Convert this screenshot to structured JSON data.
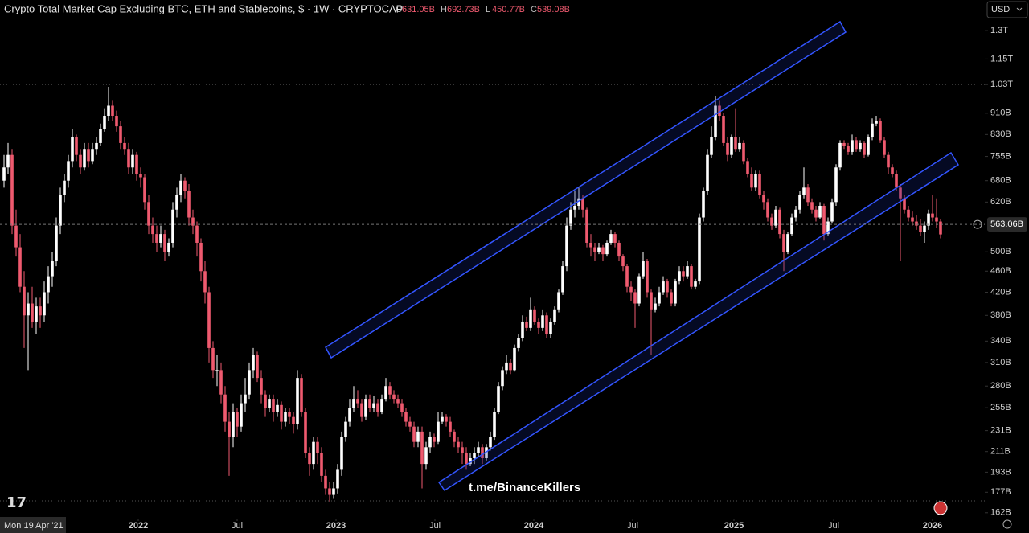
{
  "chart_data": {
    "type": "candlestick",
    "title": "Crypto Total Market Cap Excluding BTC, ETH and Stablecoins, $ · 1W · CRYPTOCAP",
    "ohlc_legend": [
      {
        "key": "O",
        "value": 631.05,
        "label": "631.05B"
      },
      {
        "key": "H",
        "value": 692.73,
        "label": "692.73B"
      },
      {
        "key": "L",
        "value": 450.77,
        "label": "450.77B"
      },
      {
        "key": "C",
        "value": 539.08,
        "label": "539.08B"
      }
    ],
    "currency": "USD",
    "cursor_label": "Mon 19 Apr '21",
    "watermark": "t.me/BinanceKillers",
    "log_scale": true,
    "up_color": "#ffffff",
    "down_color": "#ef5a6f",
    "last_price": {
      "value": 563.06,
      "label": "563.06B"
    },
    "xlim": [
      -1,
      244
    ],
    "xticks": [
      {
        "value": 33.4,
        "label": "2022"
      },
      {
        "value": 58,
        "label": "Jul"
      },
      {
        "value": 82.6,
        "label": "2023"
      },
      {
        "value": 107.2,
        "label": "Jul"
      },
      {
        "value": 131.8,
        "label": "2024"
      },
      {
        "value": 156.4,
        "label": "Jul"
      },
      {
        "value": 181.6,
        "label": "2025"
      },
      {
        "value": 206.4,
        "label": "Jul"
      },
      {
        "value": 231,
        "label": "2026"
      }
    ],
    "ylim": [
      158,
      1484
    ],
    "yticks": [
      {
        "value": 162,
        "label": "162B"
      },
      {
        "value": 177,
        "label": "177B"
      },
      {
        "value": 193,
        "label": "193B"
      },
      {
        "value": 211,
        "label": "211B"
      },
      {
        "value": 231,
        "label": "231B"
      },
      {
        "value": 255,
        "label": "255B"
      },
      {
        "value": 280,
        "label": "280B"
      },
      {
        "value": 310,
        "label": "310B"
      },
      {
        "value": 340,
        "label": "340B"
      },
      {
        "value": 380,
        "label": "380B"
      },
      {
        "value": 420,
        "label": "420B"
      },
      {
        "value": 460,
        "label": "460B"
      },
      {
        "value": 500,
        "label": "500B"
      },
      {
        "value": 620,
        "label": "620B"
      },
      {
        "value": 680,
        "label": "680B"
      },
      {
        "value": 755,
        "label": "755B"
      },
      {
        "value": 830,
        "label": "830B"
      },
      {
        "value": 910,
        "label": "910B"
      },
      {
        "value": 1030,
        "label": "1.03T"
      },
      {
        "value": 1150,
        "label": "1.15T"
      },
      {
        "value": 1300,
        "label": "1.3T"
      }
    ],
    "candles": {
      "open": [
        680,
        720,
        760,
        560,
        510,
        430,
        380,
        400,
        370,
        395,
        380,
        420,
        450,
        480,
        560,
        640,
        680,
        740,
        820,
        760,
        720,
        780,
        740,
        780,
        800,
        850,
        900,
        940,
        900,
        860,
        800,
        780,
        720,
        760,
        700,
        690,
        620,
        560,
        540,
        520,
        540,
        500,
        520,
        600,
        640,
        680,
        650,
        580,
        560,
        520,
        460,
        420,
        330,
        300,
        300,
        270,
        240,
        225,
        250,
        235,
        260,
        270,
        300,
        320,
        290,
        270,
        255,
        265,
        250,
        258,
        240,
        250,
        245,
        238,
        290,
        250,
        210,
        200,
        220,
        210,
        190,
        180,
        175,
        180,
        195,
        225,
        240,
        255,
        265,
        260,
        245,
        265,
        255,
        260,
        250,
        265,
        280,
        270,
        265,
        260,
        250,
        240,
        235,
        220,
        230,
        200,
        215,
        225,
        220,
        240,
        245,
        240,
        230,
        220,
        215,
        210,
        200,
        205,
        210,
        215,
        205,
        215,
        225,
        250,
        280,
        300,
        310,
        300,
        330,
        345,
        370,
        360,
        390,
        370,
        360,
        380,
        350,
        370,
        390,
        420,
        470,
        560,
        600,
        610,
        630,
        600,
        520,
        510,
        500,
        510,
        495,
        520,
        540,
        520,
        490,
        470,
        430,
        420,
        400,
        450,
        480,
        420,
        390,
        400,
        420,
        440,
        420,
        400,
        440,
        460,
        450,
        470,
        430,
        440,
        580,
        650,
        760,
        820,
        940,
        900,
        800,
        760,
        820,
        780,
        800,
        740,
        700,
        660,
        700,
        640,
        620,
        580,
        560,
        600,
        540,
        500,
        540,
        580,
        600,
        640,
        660,
        620,
        600,
        580,
        610,
        540,
        570,
        620,
        720,
        800,
        790,
        770,
        810,
        780,
        800,
        760,
        820,
        870,
        880,
        810,
        760,
        720,
        700,
        660,
        630,
        600,
        580,
        570,
        560,
        545,
        560,
        590,
        580,
        570
      ],
      "high": [
        760,
        800,
        780,
        600,
        540,
        460,
        420,
        430,
        410,
        410,
        440,
        470,
        500,
        580,
        660,
        700,
        760,
        850,
        830,
        780,
        800,
        800,
        800,
        820,
        870,
        930,
        1020,
        960,
        920,
        880,
        820,
        800,
        780,
        770,
        720,
        700,
        640,
        580,
        560,
        560,
        550,
        530,
        620,
        660,
        700,
        690,
        670,
        600,
        570,
        530,
        480,
        430,
        340,
        320,
        310,
        280,
        250,
        260,
        255,
        270,
        290,
        310,
        330,
        325,
        300,
        275,
        270,
        270,
        265,
        262,
        255,
        255,
        250,
        300,
        295,
        255,
        215,
        225,
        225,
        215,
        195,
        185,
        185,
        200,
        230,
        245,
        265,
        280,
        275,
        265,
        270,
        270,
        268,
        265,
        270,
        290,
        285,
        275,
        270,
        265,
        255,
        245,
        240,
        235,
        235,
        220,
        230,
        228,
        250,
        250,
        248,
        245,
        232,
        225,
        220,
        215,
        210,
        215,
        220,
        218,
        218,
        230,
        255,
        285,
        305,
        320,
        315,
        335,
        350,
        380,
        378,
        410,
        395,
        375,
        390,
        385,
        375,
        395,
        425,
        480,
        580,
        620,
        650,
        660,
        640,
        605,
        540,
        520,
        520,
        515,
        525,
        550,
        545,
        525,
        495,
        475,
        440,
        425,
        455,
        500,
        485,
        425,
        410,
        430,
        450,
        445,
        425,
        445,
        470,
        470,
        480,
        475,
        445,
        590,
        660,
        780,
        860,
        980,
        960,
        910,
        820,
        830,
        930,
        820,
        810,
        750,
        720,
        710,
        710,
        650,
        630,
        590,
        610,
        605,
        550,
        545,
        590,
        610,
        650,
        720,
        670,
        630,
        610,
        620,
        615,
        580,
        630,
        730,
        810,
        810,
        800,
        830,
        820,
        810,
        805,
        830,
        890,
        900,
        890,
        820,
        770,
        730,
        710,
        670,
        640,
        610,
        595,
        585,
        575,
        570,
        600,
        640,
        630,
        575
      ],
      "low": [
        660,
        700,
        540,
        490,
        420,
        330,
        300,
        360,
        350,
        360,
        370,
        400,
        430,
        470,
        540,
        620,
        660,
        720,
        740,
        700,
        710,
        720,
        730,
        760,
        790,
        840,
        880,
        880,
        840,
        780,
        760,
        700,
        700,
        680,
        660,
        600,
        540,
        520,
        500,
        510,
        480,
        490,
        510,
        580,
        620,
        630,
        560,
        540,
        490,
        440,
        400,
        310,
        290,
        280,
        260,
        230,
        190,
        215,
        225,
        230,
        250,
        265,
        290,
        285,
        260,
        245,
        250,
        240,
        245,
        232,
        235,
        238,
        228,
        232,
        245,
        205,
        190,
        195,
        200,
        185,
        175,
        170,
        172,
        176,
        190,
        220,
        235,
        250,
        255,
        240,
        242,
        250,
        250,
        245,
        248,
        262,
        265,
        260,
        255,
        245,
        235,
        230,
        215,
        215,
        180,
        195,
        210,
        215,
        218,
        238,
        235,
        225,
        215,
        210,
        200,
        195,
        198,
        200,
        206,
        200,
        203,
        212,
        222,
        248,
        275,
        295,
        295,
        298,
        325,
        340,
        355,
        355,
        365,
        350,
        355,
        345,
        345,
        365,
        385,
        415,
        460,
        550,
        580,
        600,
        580,
        510,
        490,
        480,
        495,
        480,
        490,
        515,
        510,
        480,
        460,
        420,
        405,
        360,
        395,
        445,
        410,
        320,
        385,
        395,
        415,
        410,
        395,
        395,
        435,
        440,
        445,
        425,
        425,
        435,
        570,
        640,
        750,
        810,
        880,
        790,
        740,
        750,
        770,
        770,
        730,
        690,
        650,
        650,
        630,
        600,
        570,
        550,
        555,
        530,
        460,
        495,
        535,
        570,
        590,
        630,
        610,
        590,
        570,
        575,
        525,
        535,
        565,
        610,
        710,
        780,
        760,
        760,
        770,
        770,
        750,
        755,
        810,
        860,
        800,
        750,
        700,
        690,
        650,
        480,
        590,
        570,
        560,
        550,
        535,
        520,
        550,
        570,
        555,
        530
      ],
      "close": [
        720,
        760,
        560,
        510,
        430,
        380,
        400,
        370,
        395,
        380,
        420,
        450,
        480,
        560,
        640,
        680,
        740,
        820,
        760,
        720,
        780,
        740,
        780,
        800,
        850,
        900,
        940,
        900,
        860,
        800,
        780,
        720,
        760,
        700,
        690,
        620,
        560,
        540,
        520,
        540,
        500,
        520,
        600,
        640,
        680,
        650,
        580,
        560,
        520,
        460,
        420,
        330,
        300,
        300,
        270,
        240,
        225,
        250,
        235,
        260,
        270,
        300,
        320,
        290,
        270,
        255,
        265,
        250,
        258,
        240,
        250,
        245,
        238,
        290,
        250,
        210,
        200,
        220,
        210,
        190,
        180,
        175,
        180,
        195,
        225,
        240,
        255,
        265,
        260,
        245,
        265,
        255,
        260,
        250,
        265,
        280,
        270,
        265,
        260,
        250,
        240,
        235,
        220,
        230,
        200,
        215,
        225,
        220,
        240,
        245,
        240,
        230,
        220,
        215,
        210,
        200,
        205,
        210,
        215,
        205,
        215,
        225,
        250,
        280,
        300,
        310,
        300,
        330,
        345,
        370,
        360,
        390,
        370,
        360,
        380,
        350,
        370,
        390,
        420,
        470,
        560,
        600,
        610,
        630,
        600,
        520,
        510,
        500,
        510,
        495,
        520,
        540,
        520,
        490,
        470,
        430,
        420,
        400,
        450,
        480,
        420,
        390,
        400,
        420,
        440,
        420,
        400,
        440,
        460,
        450,
        470,
        430,
        440,
        580,
        650,
        760,
        820,
        940,
        900,
        800,
        760,
        820,
        780,
        800,
        740,
        700,
        660,
        700,
        640,
        620,
        580,
        560,
        600,
        540,
        500,
        540,
        580,
        600,
        640,
        660,
        620,
        600,
        580,
        610,
        540,
        570,
        620,
        720,
        800,
        790,
        770,
        810,
        780,
        800,
        760,
        820,
        870,
        880,
        810,
        760,
        720,
        700,
        660,
        630,
        600,
        580,
        570,
        560,
        545,
        560,
        590,
        580,
        570,
        539.08
      ]
    }
  }
}
